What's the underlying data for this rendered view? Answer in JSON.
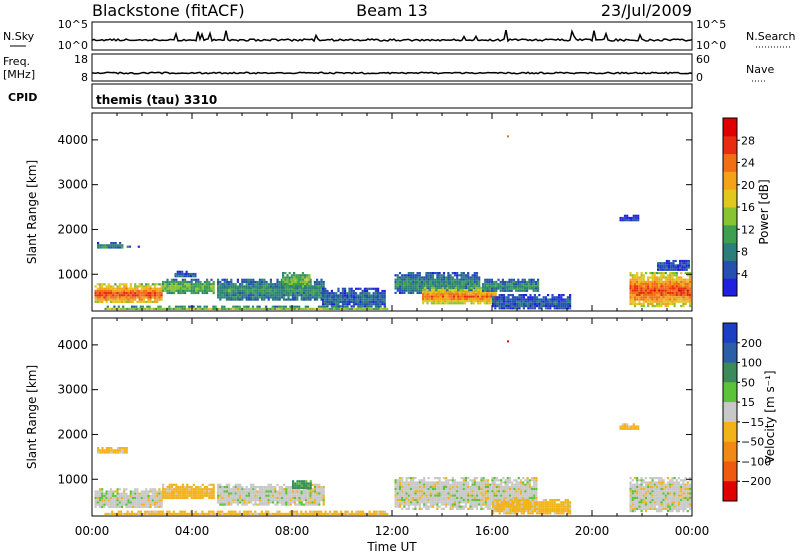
{
  "header": {
    "station": "Blackstone (fitACF)",
    "beam": "Beam 13",
    "date": "23/Jul/2009"
  },
  "info": {
    "nsky_label": "N.Sky",
    "nsearch_label": "N.Search",
    "freq_label": "Freq.",
    "freq_unit": "[MHz]",
    "nave_label": "Nave",
    "cpid_label": "CPID",
    "nsky_ticks": [
      "10^5",
      "10^0"
    ],
    "nsearch_ticks": [
      "10^5",
      "10^0"
    ],
    "freq_ticks": [
      "18",
      "8"
    ],
    "nave_ticks": [
      "60",
      "0"
    ],
    "cpid_value": "themis (tau) 3310"
  },
  "chart_data": [
    {
      "type": "heatmap",
      "name": "power",
      "xlabel": "",
      "ylabel": "Slant Range [km]",
      "xlim": [
        0,
        24
      ],
      "ylim": [
        180,
        4600
      ],
      "yticks": [
        1000,
        2000,
        3000,
        4000
      ],
      "colorbar": {
        "label": "Power [dB]",
        "ticks": [
          "4",
          "8",
          "12",
          "16",
          "20",
          "24",
          "28"
        ],
        "colors": [
          "#2020e0",
          "#2450b0",
          "#2a7f7a",
          "#3e9f50",
          "#88c432",
          "#e0c81c",
          "#f3a21a",
          "#f06e14",
          "#e82c12",
          "#e00000"
        ]
      },
      "regions": [
        {
          "t0": 0.1,
          "t1": 2.9,
          "r0": 320,
          "r1": 800,
          "level": 27
        },
        {
          "t0": 0.2,
          "t1": 1.3,
          "r0": 1550,
          "r1": 1720,
          "level": 9
        },
        {
          "t0": 1.3,
          "t1": 2.0,
          "r0": 1560,
          "r1": 1640,
          "level": 7
        },
        {
          "t0": 2.8,
          "t1": 5.0,
          "r0": 540,
          "r1": 900,
          "level": 14
        },
        {
          "t0": 3.3,
          "t1": 4.2,
          "r0": 900,
          "r1": 1080,
          "level": 6
        },
        {
          "t0": 5.0,
          "t1": 9.4,
          "r0": 360,
          "r1": 900,
          "level": 10
        },
        {
          "t0": 7.6,
          "t1": 8.8,
          "r0": 700,
          "r1": 1050,
          "level": 15
        },
        {
          "t0": 9.2,
          "t1": 11.8,
          "r0": 220,
          "r1": 700,
          "level": 6
        },
        {
          "t0": 0.5,
          "t1": 11.9,
          "r0": 180,
          "r1": 300,
          "level": 14
        },
        {
          "t0": 12.1,
          "t1": 15.6,
          "r0": 540,
          "r1": 1050,
          "level": 9
        },
        {
          "t0": 13.2,
          "t1": 16.2,
          "r0": 280,
          "r1": 720,
          "level": 25
        },
        {
          "t0": 15.6,
          "t1": 17.9,
          "r0": 560,
          "r1": 900,
          "level": 10
        },
        {
          "t0": 16.0,
          "t1": 19.2,
          "r0": 200,
          "r1": 560,
          "level": 6
        },
        {
          "t0": 21.5,
          "t1": 24.0,
          "r0": 260,
          "r1": 1050,
          "level": 27
        },
        {
          "t0": 22.6,
          "t1": 24.0,
          "r0": 1050,
          "r1": 1320,
          "level": 5
        },
        {
          "t0": 21.1,
          "t1": 21.9,
          "r0": 2150,
          "r1": 2330,
          "level": 4
        }
      ]
    },
    {
      "type": "heatmap",
      "name": "velocity",
      "xlabel": "Time UT",
      "ylabel": "Slant Range [km]",
      "xlim": [
        0,
        24
      ],
      "ylim": [
        180,
        4600
      ],
      "xticks": [
        "00:00",
        "04:00",
        "08:00",
        "12:00",
        "16:00",
        "20:00",
        "00:00"
      ],
      "yticks": [
        1000,
        2000,
        3000,
        4000
      ],
      "colorbar": {
        "label": "Velocity [m s⁻¹]",
        "ticks": [
          "200",
          "100",
          "50",
          "15",
          "−15",
          "−50",
          "−100",
          "−200"
        ],
        "colors": [
          "#1c3fc4",
          "#2a5fa8",
          "#3a8a5a",
          "#5cc23a",
          "#c8c8c8",
          "#f2b21a",
          "#f08a14",
          "#f05a10",
          "#e00000"
        ]
      },
      "regions": [
        {
          "t0": 0.1,
          "t1": 2.9,
          "r0": 320,
          "r1": 800,
          "v": 0
        },
        {
          "t0": 0.2,
          "t1": 1.5,
          "r0": 1550,
          "r1": 1720,
          "v": -30
        },
        {
          "t0": 2.8,
          "t1": 5.0,
          "r0": 540,
          "r1": 900,
          "v": -30
        },
        {
          "t0": 5.0,
          "t1": 9.4,
          "r0": 360,
          "r1": 900,
          "v": 0
        },
        {
          "t0": 8.0,
          "t1": 8.8,
          "r0": 750,
          "r1": 980,
          "v": 40
        },
        {
          "t0": 0.5,
          "t1": 11.9,
          "r0": 180,
          "r1": 300,
          "v": -30
        },
        {
          "t0": 12.1,
          "t1": 17.9,
          "r0": 300,
          "r1": 1050,
          "v": 0
        },
        {
          "t0": 16.0,
          "t1": 19.2,
          "r0": 200,
          "r1": 560,
          "v": -30
        },
        {
          "t0": 21.5,
          "t1": 24.0,
          "r0": 260,
          "r1": 1050,
          "v": 0
        },
        {
          "t0": 21.1,
          "t1": 21.9,
          "r0": 2100,
          "r1": 2250,
          "v": -30
        }
      ]
    }
  ]
}
